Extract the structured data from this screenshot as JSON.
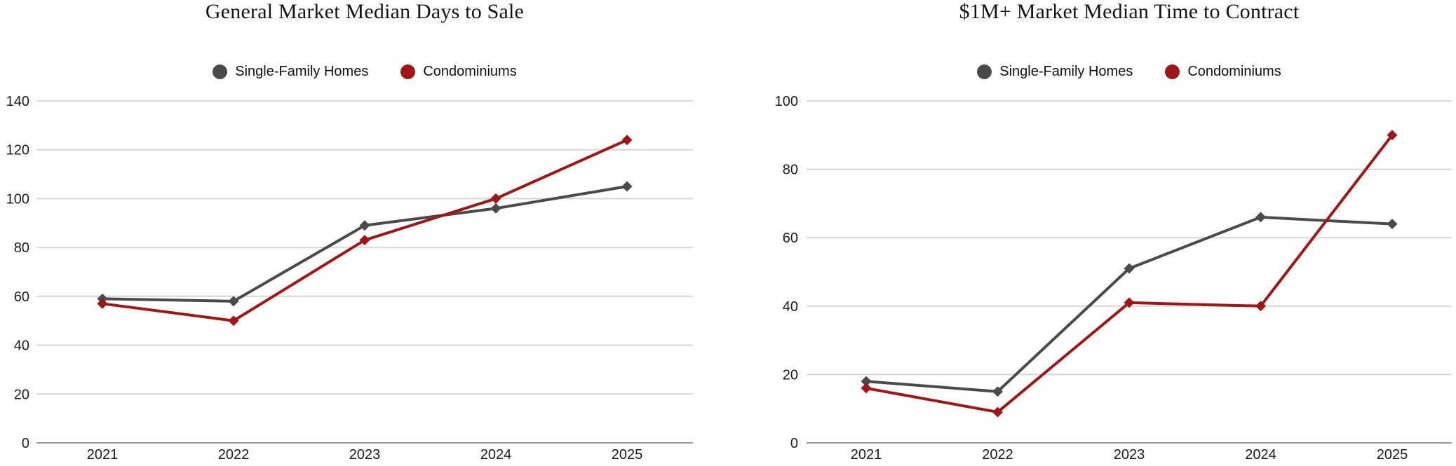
{
  "colors": {
    "single_family": "#4a4a4a",
    "condominiums": "#a01515",
    "gridline": "#d8d8d8",
    "axis_line": "#999999",
    "tick_text": "#1c1c1c",
    "background": "#ffffff"
  },
  "chart_data": [
    {
      "type": "line",
      "title": "General Market Median Days to Sale",
      "categories": [
        "2021",
        "2022",
        "2023",
        "2024",
        "2025"
      ],
      "series": [
        {
          "name": "Single-Family Homes",
          "color": "#4a4a4a",
          "values": [
            59,
            58,
            89,
            96,
            105
          ]
        },
        {
          "name": "Condominiums",
          "color": "#a01515",
          "values": [
            57,
            50,
            83,
            100,
            124
          ]
        }
      ],
      "xlabel": "",
      "ylabel": "",
      "ylim": [
        0,
        140
      ],
      "ytick_step": 20,
      "grid": "horizontal",
      "legend_position": "top",
      "marker": "diamond"
    },
    {
      "type": "line",
      "title": "$1M+ Market Median Time to Contract",
      "categories": [
        "2021",
        "2022",
        "2023",
        "2024",
        "2025"
      ],
      "series": [
        {
          "name": "Single-Family Homes",
          "color": "#4a4a4a",
          "values": [
            18,
            15,
            51,
            66,
            64
          ]
        },
        {
          "name": "Condominiums",
          "color": "#a01515",
          "values": [
            16,
            9,
            41,
            40,
            90
          ]
        }
      ],
      "xlabel": "",
      "ylabel": "",
      "ylim": [
        0,
        100
      ],
      "ytick_step": 20,
      "grid": "horizontal",
      "legend_position": "top",
      "marker": "diamond"
    }
  ]
}
